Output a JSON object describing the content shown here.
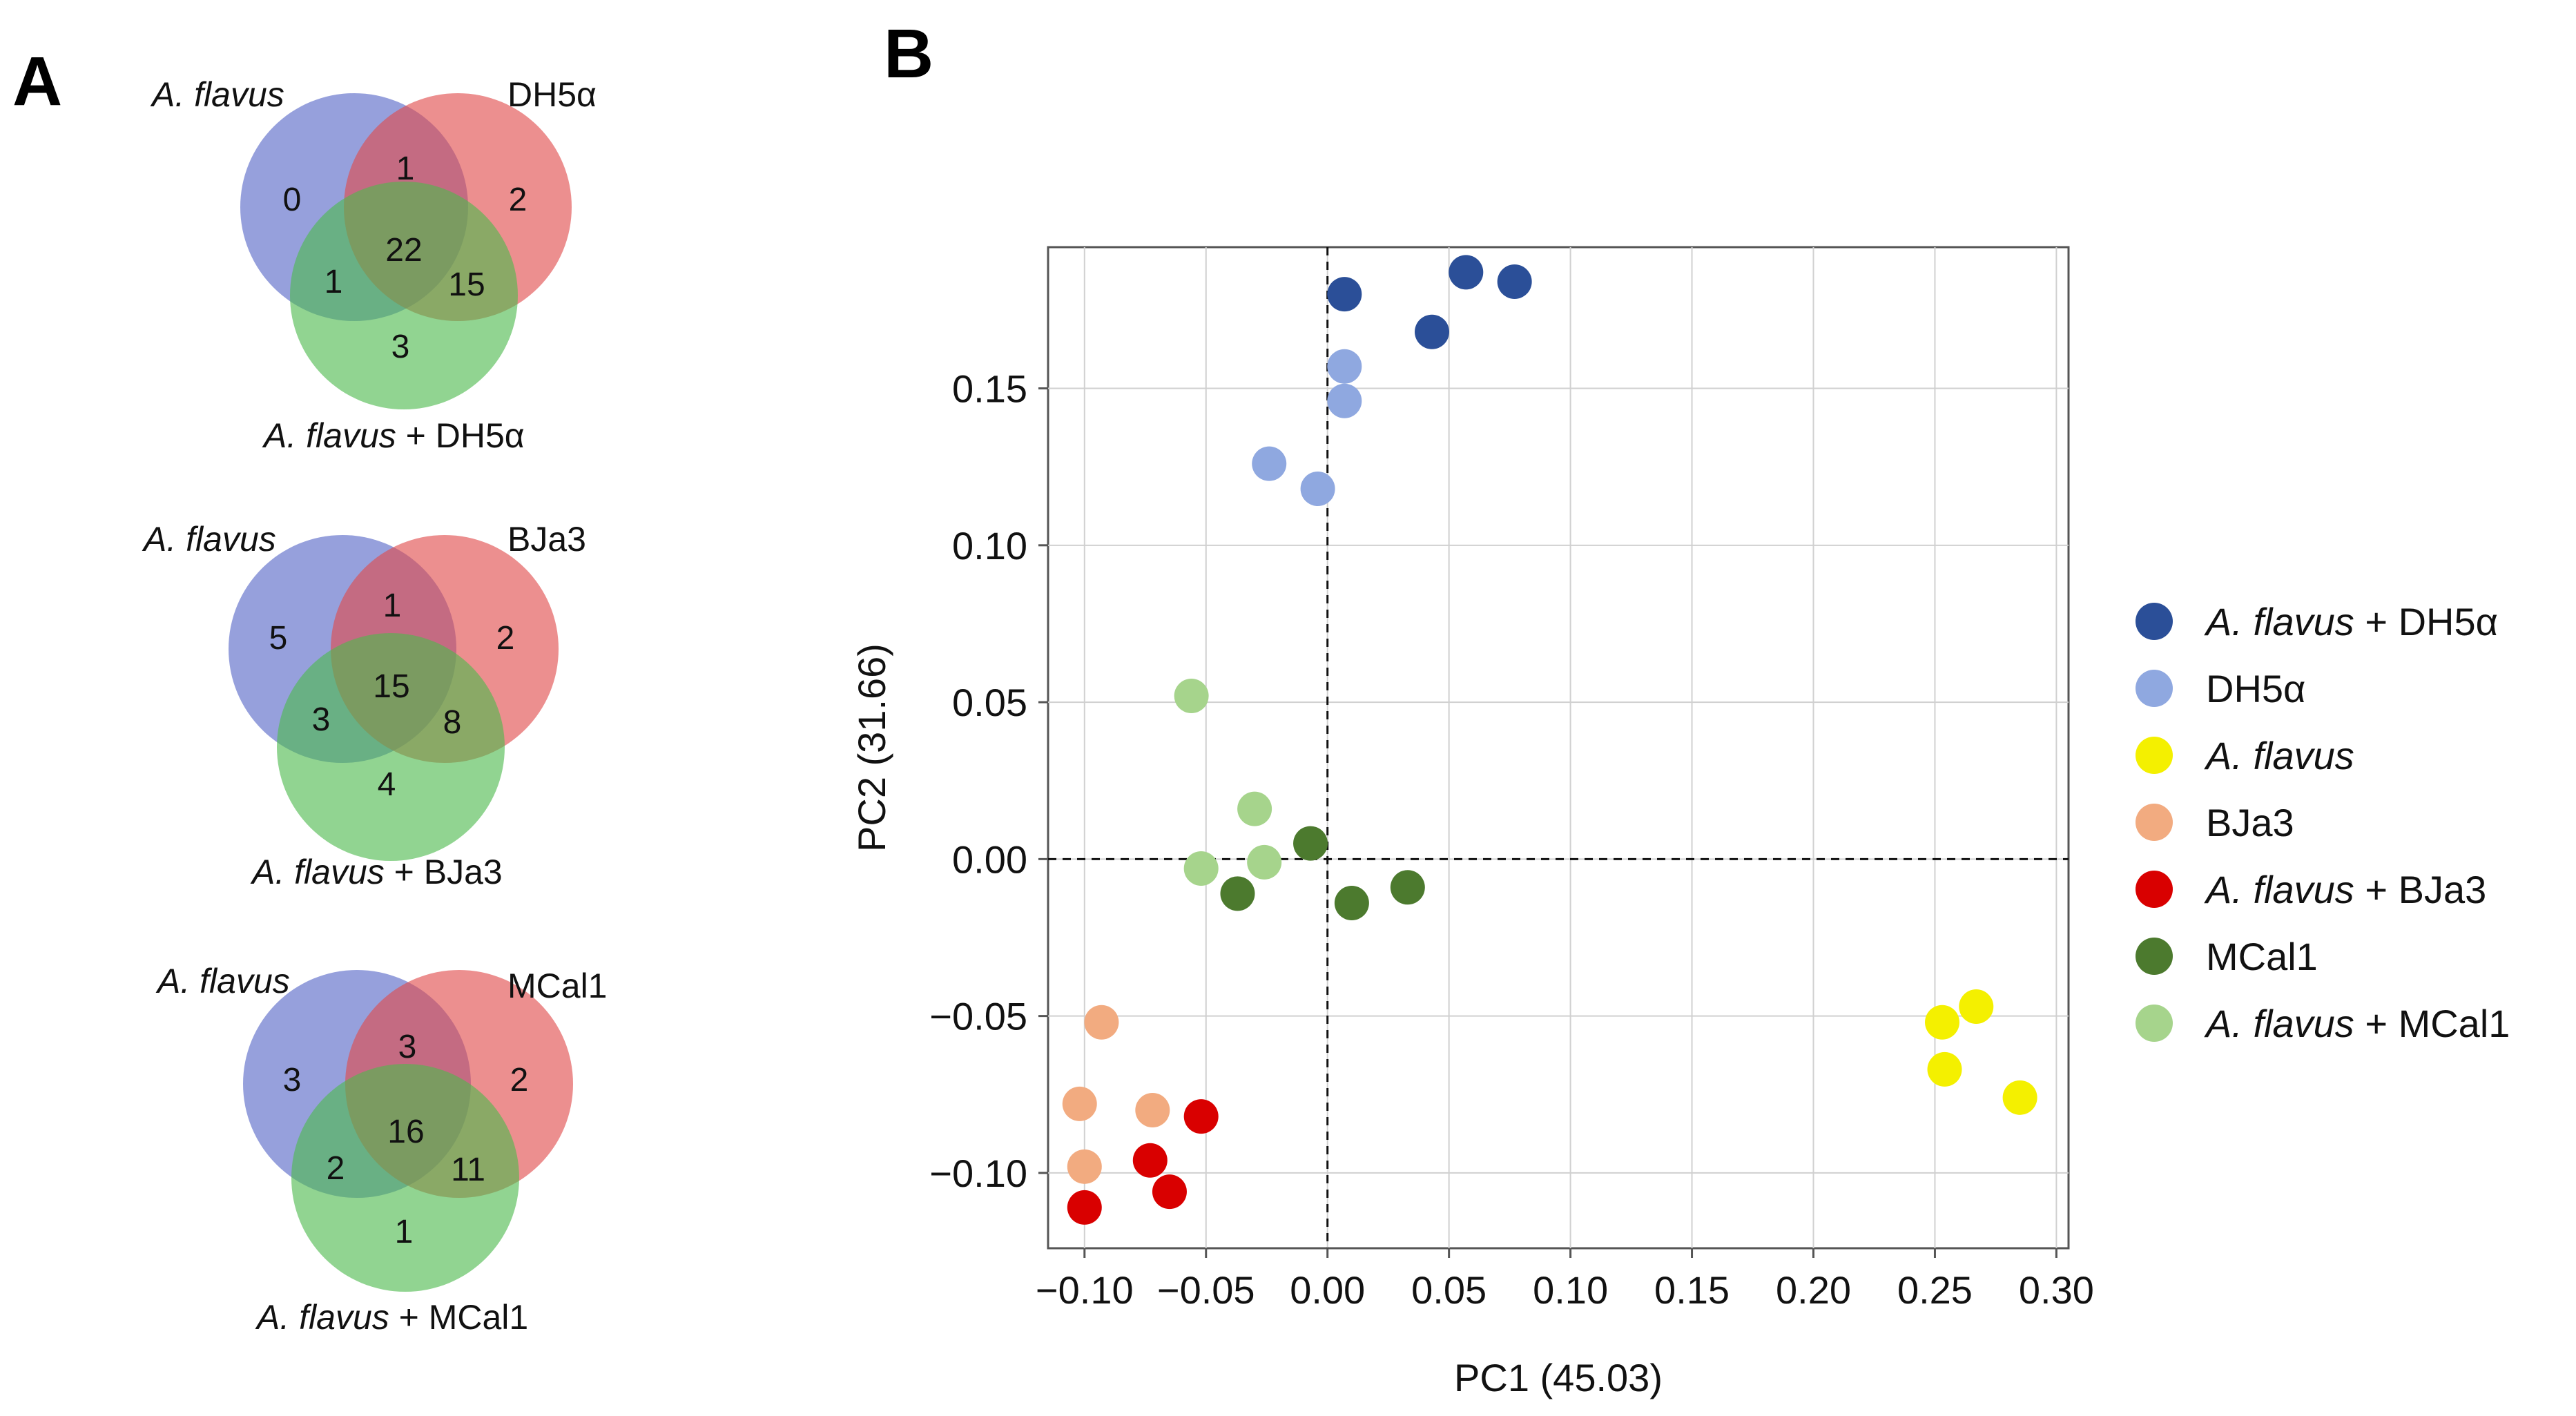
{
  "panels": {
    "a_label": "A",
    "b_label": "B"
  },
  "venn": [
    {
      "top_left_label": "A. flavus",
      "top_right_label": "DH5α",
      "bottom_label": "A. flavus + DH5α",
      "regions": {
        "a_only": "0",
        "b_only": "2",
        "c_only": "3",
        "ab": "1",
        "ac": "1",
        "bc": "15",
        "abc": "22"
      }
    },
    {
      "top_left_label": "A. flavus",
      "top_right_label": "BJa3",
      "bottom_label": "A. flavus + BJa3",
      "regions": {
        "a_only": "5",
        "b_only": "2",
        "c_only": "4",
        "ab": "1",
        "ac": "3",
        "bc": "8",
        "abc": "15"
      }
    },
    {
      "top_left_label": "A. flavus",
      "top_right_label": "MCal1",
      "bottom_label": "A. flavus + MCal1",
      "regions": {
        "a_only": "3",
        "b_only": "2",
        "c_only": "1",
        "ab": "3",
        "ac": "2",
        "bc": "11",
        "abc": "16"
      }
    }
  ],
  "venn_colors": {
    "a": "#5566c7",
    "b": "#e04b4b",
    "c": "#4dba4d"
  },
  "chart_data": {
    "type": "scatter",
    "xlabel": "PC1 (45.03)",
    "ylabel": "PC2 (31.66)",
    "xlim": [
      -0.115,
      0.305
    ],
    "ylim": [
      -0.124,
      0.195
    ],
    "xticks": [
      -0.1,
      -0.05,
      0.0,
      0.05,
      0.1,
      0.15,
      0.2,
      0.25,
      0.3
    ],
    "yticks": [
      -0.1,
      -0.05,
      0.0,
      0.05,
      0.1,
      0.15
    ],
    "xtick_labels": [
      "−0.10",
      "−0.05",
      "0.00",
      "0.05",
      "0.10",
      "0.15",
      "0.20",
      "0.25",
      "0.30"
    ],
    "ytick_labels": [
      "−0.10",
      "−0.05",
      "0.00",
      "0.05",
      "0.10",
      "0.15"
    ],
    "grid": true,
    "reference_lines": {
      "x": 0,
      "y": 0
    },
    "legend_position": "right",
    "series": [
      {
        "name": "A. flavus + DH5α",
        "name_italic": "A. flavus",
        "name_rest": " + DH5α",
        "color": "#2b4f98",
        "x": [
          0.007,
          0.057,
          0.077,
          0.043
        ],
        "y": [
          0.18,
          0.187,
          0.184,
          0.168
        ]
      },
      {
        "name": "DH5α",
        "name_italic": "",
        "name_rest": "DH5α",
        "color": "#8fa8e0",
        "x": [
          0.007,
          0.007,
          -0.024,
          -0.004
        ],
        "y": [
          0.157,
          0.146,
          0.126,
          0.118
        ]
      },
      {
        "name": "A. flavus",
        "name_italic": "A. flavus",
        "name_rest": "",
        "color": "#f4f000",
        "x": [
          0.253,
          0.267,
          0.254,
          0.285
        ],
        "y": [
          -0.052,
          -0.047,
          -0.067,
          -0.076
        ]
      },
      {
        "name": "BJa3",
        "name_italic": "",
        "name_rest": "BJa3",
        "color": "#f2ab80",
        "x": [
          -0.093,
          -0.102,
          -0.072,
          -0.1
        ],
        "y": [
          -0.052,
          -0.078,
          -0.08,
          -0.098
        ]
      },
      {
        "name": "A. flavus + BJa3",
        "name_italic": "A. flavus",
        "name_rest": " + BJa3",
        "color": "#d90000",
        "x": [
          -0.052,
          -0.073,
          -0.065,
          -0.1
        ],
        "y": [
          -0.082,
          -0.096,
          -0.106,
          -0.111
        ]
      },
      {
        "name": "MCal1",
        "name_italic": "",
        "name_rest": "MCal1",
        "color": "#4c7a2e",
        "x": [
          -0.007,
          -0.037,
          0.01,
          0.033
        ],
        "y": [
          0.005,
          -0.011,
          -0.014,
          -0.009
        ]
      },
      {
        "name": "A. flavus + MCal1",
        "name_italic": "A. flavus",
        "name_rest": " + MCal1",
        "color": "#a6d48c",
        "x": [
          -0.056,
          -0.03,
          -0.052,
          -0.026
        ],
        "y": [
          0.052,
          0.016,
          -0.003,
          -0.001
        ]
      }
    ]
  }
}
